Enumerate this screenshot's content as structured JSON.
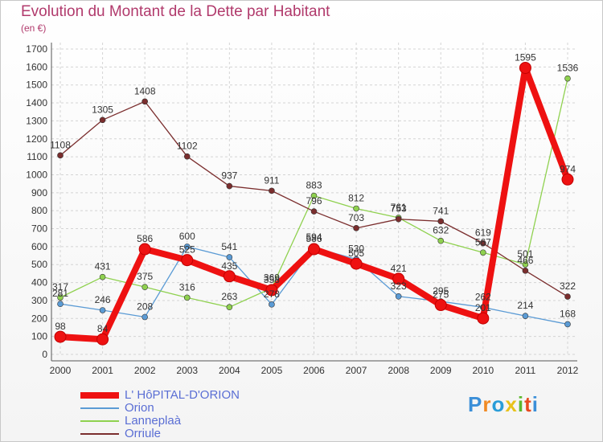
{
  "chart_data": {
    "type": "line",
    "title": "Evolution du Montant de la Dette par Habitant",
    "subtitle": "(en €)",
    "categories": [
      "2000",
      "2001",
      "2002",
      "2003",
      "2004",
      "2005",
      "2006",
      "2007",
      "2008",
      "2009",
      "2010",
      "2011",
      "2012"
    ],
    "ylim": [
      0,
      1700
    ],
    "yticks": [
      0,
      100,
      200,
      300,
      400,
      500,
      600,
      700,
      800,
      900,
      1000,
      1100,
      1200,
      1300,
      1400,
      1500,
      1600,
      1700
    ],
    "grid": true,
    "legend_position": "bottom-left",
    "series": [
      {
        "name": "L' HôPITAL-D'ORION",
        "color": "#ee1111",
        "values": [
          98,
          84,
          586,
          525,
          435,
          358,
          586,
          505,
          421,
          275,
          201,
          1595,
          974
        ],
        "labels": [
          "98",
          "84",
          "586",
          "525",
          "435",
          "358",
          "586",
          "505",
          "421",
          "275",
          "201",
          "1595",
          "974"
        ],
        "bold": true
      },
      {
        "name": "Orion",
        "color": "#5b9bd5",
        "values": [
          281,
          246,
          208,
          600,
          541,
          278,
          594,
          530,
          323,
          295,
          262,
          214,
          168
        ],
        "labels": [
          "281",
          "246",
          "208",
          "600",
          "541",
          "278",
          "594",
          "530",
          "323",
          "295",
          "262",
          "214",
          "168"
        ]
      },
      {
        "name": "Lanneplaà",
        "color": "#8fd14f",
        "values": [
          317,
          431,
          375,
          316,
          263,
          369,
          883,
          812,
          761,
          632,
          567,
          501,
          1536
        ],
        "labels": [
          "317",
          "431",
          "375",
          "316",
          "263",
          "369",
          "883",
          "812",
          "761",
          "632",
          "567",
          "501",
          "1536"
        ]
      },
      {
        "name": "Orriule",
        "color": "#7b2e2e",
        "values": [
          1108,
          1305,
          1408,
          1102,
          937,
          911,
          796,
          703,
          753,
          741,
          619,
          466,
          322
        ],
        "labels": [
          "1108",
          "1305",
          "1408",
          "1102",
          "937",
          "911",
          "796",
          "703",
          "753",
          "741",
          "619",
          "466",
          "322"
        ]
      }
    ]
  },
  "brand": {
    "letters": [
      "P",
      "r",
      "o",
      "x",
      "i",
      "t",
      "i"
    ],
    "colors": [
      "#3b8fd8",
      "#f08a24",
      "#2a9dd8",
      "#e8c21a",
      "#5cb82e",
      "#e84a1f",
      "#3b8fd8"
    ]
  }
}
